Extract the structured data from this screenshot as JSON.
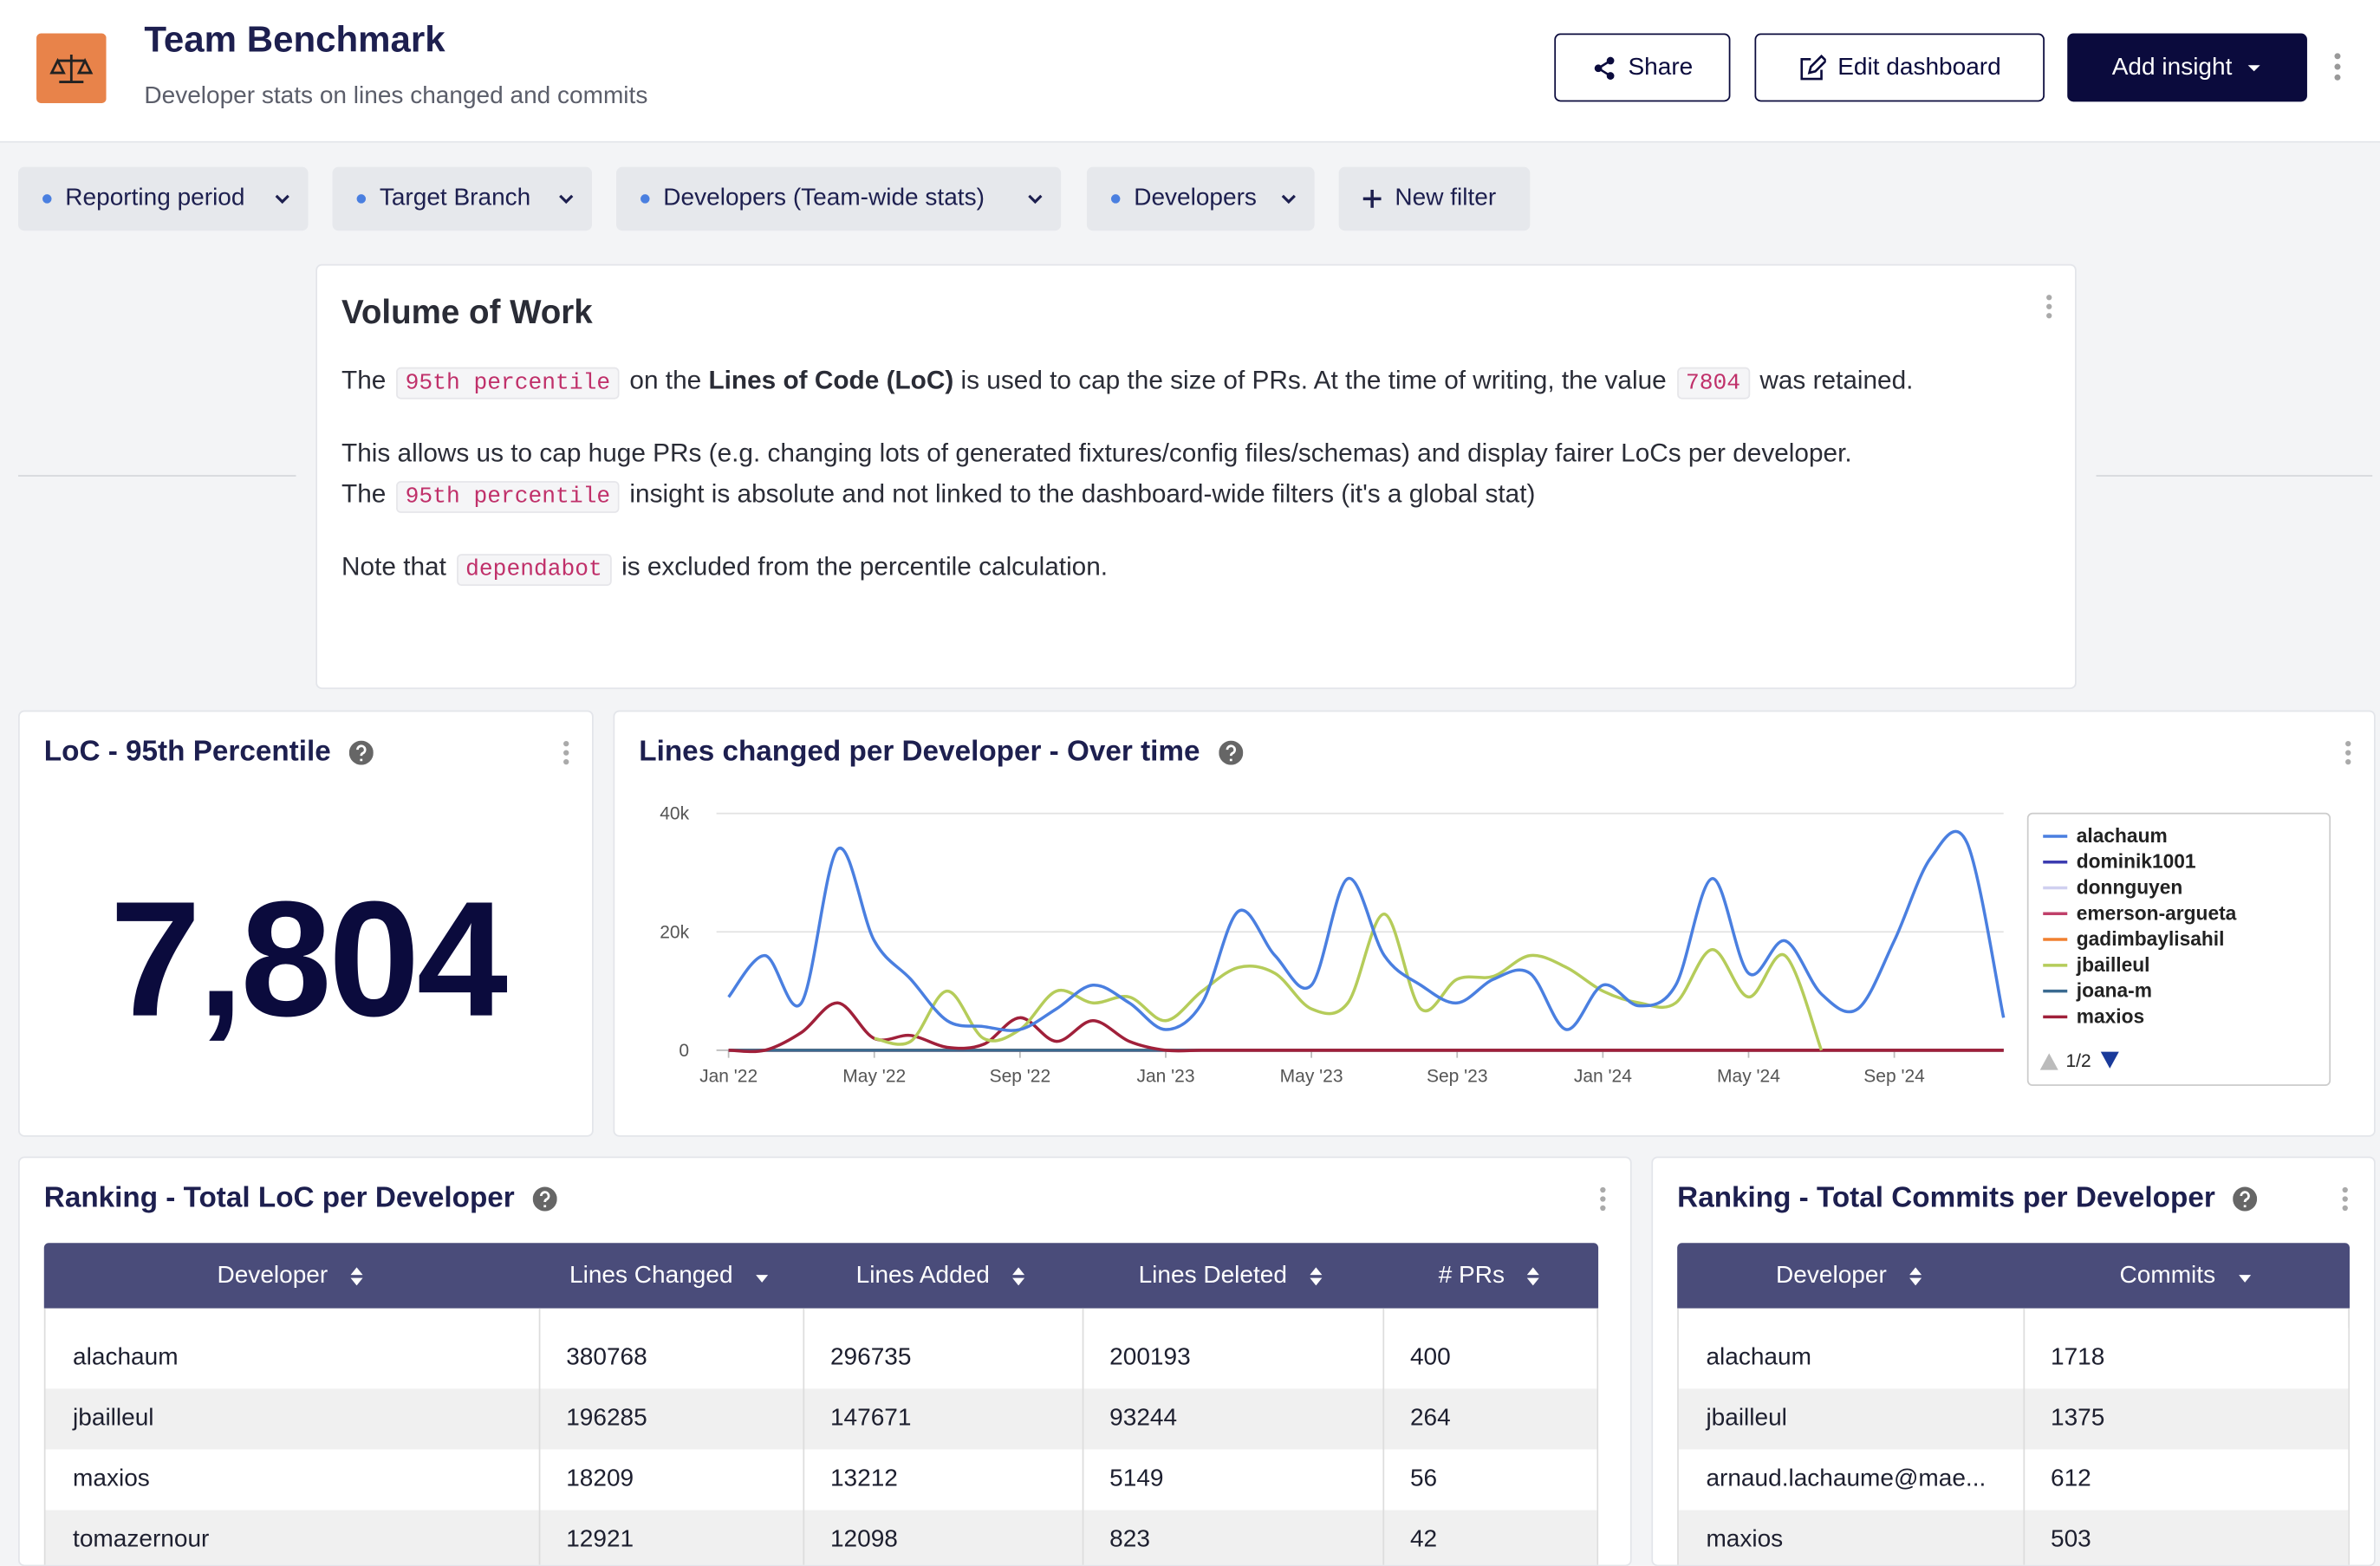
{
  "header": {
    "title": "Team Benchmark",
    "subtitle": "Developer stats on lines changed and commits",
    "buttons": [
      "Share",
      "Edit dashboard",
      "Add insight"
    ]
  },
  "filters": [
    "Reporting period",
    "Target Branch",
    "Developers (Team-wide stats)",
    "Developers",
    "New filter"
  ],
  "text_card": {
    "title": "Volume of Work",
    "paragraphs": [
      [
        [
          {
            "text": "The "
          },
          {
            "text": "95th percentile",
            "style": "code"
          },
          {
            "text": " on the "
          },
          {
            "text": "Lines of Code (LoC)",
            "style": "bold"
          },
          {
            "text": " is used to cap the size of PRs. At the time of writing, the value "
          },
          {
            "text": "7804",
            "style": "code"
          },
          {
            "text": " was retained."
          }
        ]
      ],
      [
        [
          {
            "text": "This allows us to cap huge PRs (e.g. changing lots of generated fixtures/config files/schemas) and display fairer LoCs per developer."
          }
        ],
        [
          {
            "text": "The "
          },
          {
            "text": "95th percentile",
            "style": "code"
          },
          {
            "text": " insight is absolute and not linked to the dashboard-wide filters (it's a global stat)"
          }
        ]
      ],
      [
        [
          {
            "text": "Note that "
          },
          {
            "text": "dependabot",
            "style": "code"
          },
          {
            "text": " is excluded from the percentile calculation."
          }
        ]
      ]
    ]
  },
  "stat_card": {
    "title": "LoC - 95th Percentile",
    "value": 7804,
    "label": "7,804"
  },
  "chart_data": {
    "type": "line",
    "title": "Lines changed per Developer - Over time",
    "categories": [
      "Jan '22",
      null,
      null,
      null,
      "May '22",
      null,
      null,
      null,
      "Sep '22",
      null,
      null,
      null,
      "Jan '23",
      null,
      null,
      null,
      "May '23",
      null,
      null,
      null,
      "Sep '23",
      null,
      null,
      null,
      "Jan '24",
      null,
      null,
      null,
      "May '24",
      null,
      null,
      null,
      "Sep '24",
      null,
      null,
      null
    ],
    "ylim": [
      0,
      40000
    ],
    "yticks": [
      0,
      {
        "value": 20000,
        "label": "20k"
      },
      {
        "value": 40000,
        "label": "40k"
      }
    ],
    "grid": true,
    "legend_page": "1/2",
    "series": [
      {
        "name": "alachaum",
        "color": "#4a7fe0",
        "values": [
          9000,
          16000,
          8000,
          34000,
          18500,
          12000,
          5000,
          4000,
          3500,
          7000,
          11000,
          8000,
          3500,
          8000,
          23500,
          16000,
          11000,
          29000,
          16000,
          11000,
          8000,
          12000,
          13000,
          3500,
          11000,
          7500,
          11000,
          29000,
          13000,
          18500,
          9500,
          7000,
          18500,
          32500,
          35000,
          5500
        ]
      },
      {
        "name": "dominik1001",
        "color": "#3b3bb0",
        "values": [
          0,
          0,
          0,
          0,
          0,
          0,
          0,
          0,
          0,
          0,
          0,
          0,
          0,
          0,
          0,
          0,
          0,
          0,
          0,
          0,
          0,
          0,
          0,
          0,
          0,
          0,
          0,
          0,
          0,
          0,
          0,
          0,
          0,
          0,
          0,
          0
        ]
      },
      {
        "name": "donnguyen",
        "color": "#d0d0f0",
        "values": [
          0,
          0,
          0,
          0,
          0,
          0,
          0,
          0,
          0,
          0,
          0,
          0,
          0,
          0,
          0,
          0,
          0,
          0,
          0,
          0,
          0,
          0,
          0,
          0,
          0,
          0,
          0,
          0,
          0,
          0,
          0,
          0,
          0,
          0,
          0,
          0
        ]
      },
      {
        "name": "emerson-argueta",
        "color": "#c0406a",
        "values": [
          0,
          0,
          0,
          0,
          0,
          0,
          0,
          0,
          0,
          0,
          0,
          0,
          0,
          0,
          0,
          0,
          0,
          0,
          0,
          0,
          0,
          0,
          0,
          0,
          0,
          0,
          0,
          0,
          0,
          0,
          0,
          0,
          0,
          0,
          0,
          0
        ]
      },
      {
        "name": "gadimbaylisahil",
        "color": "#f08030",
        "values": [
          0,
          0,
          0,
          0,
          0,
          0,
          0,
          0,
          0,
          0,
          0,
          0,
          0,
          0,
          0,
          0,
          0,
          0,
          0,
          0,
          0,
          0,
          0,
          0,
          0,
          0,
          0,
          0,
          0,
          0,
          0,
          0,
          0,
          0,
          0,
          0
        ]
      },
      {
        "name": "jbailleul",
        "color": "#b5cc5a",
        "values": [
          null,
          null,
          null,
          null,
          2000,
          1500,
          10000,
          2000,
          3500,
          10000,
          8000,
          9000,
          5000,
          10000,
          14000,
          13000,
          7000,
          8000,
          23000,
          7000,
          12000,
          12500,
          16000,
          14000,
          10000,
          8000,
          8000,
          17000,
          9000,
          16000,
          0,
          null,
          null,
          null,
          null,
          null
        ]
      },
      {
        "name": "joana-m",
        "color": "#3a6a90",
        "values": [
          0,
          0,
          0,
          0,
          0,
          0,
          0,
          0,
          0,
          0,
          0,
          0,
          0,
          0,
          0,
          0,
          0,
          0,
          0,
          0,
          0,
          0,
          0,
          0,
          0,
          0,
          0,
          0,
          0,
          0,
          0,
          0,
          0,
          0,
          0,
          0
        ]
      },
      {
        "name": "maxios",
        "color": "#a0203a",
        "values": [
          0,
          0,
          3000,
          8000,
          2000,
          2500,
          500,
          1000,
          5500,
          1500,
          5000,
          1500,
          0,
          0,
          0,
          0,
          0,
          0,
          0,
          0,
          0,
          0,
          0,
          0,
          0,
          0,
          0,
          0,
          0,
          0,
          0,
          0,
          0,
          0,
          0,
          0
        ]
      }
    ]
  },
  "loc_table": {
    "title": "Ranking - Total LoC per Developer",
    "sorted": 1,
    "columns": [
      "Developer",
      "Lines Changed",
      "Lines Added",
      "Lines Deleted",
      "# PRs"
    ],
    "rows": [
      [
        "alachaum",
        380768,
        296735,
        200193,
        400
      ],
      [
        "jbailleul",
        196285,
        147671,
        93244,
        264
      ],
      [
        "maxios",
        18209,
        13212,
        5149,
        56
      ],
      [
        "tomazernour",
        12921,
        12098,
        823,
        42
      ]
    ]
  },
  "commits_table": {
    "title": "Ranking - Total Commits per Developer",
    "sorted": 1,
    "columns": [
      "Developer",
      "Commits"
    ],
    "rows": [
      [
        "alachaum",
        1718
      ],
      [
        "jbailleul",
        1375
      ],
      [
        "arnaud.lachaume@mae...",
        612
      ],
      [
        "maxios",
        503
      ]
    ]
  }
}
